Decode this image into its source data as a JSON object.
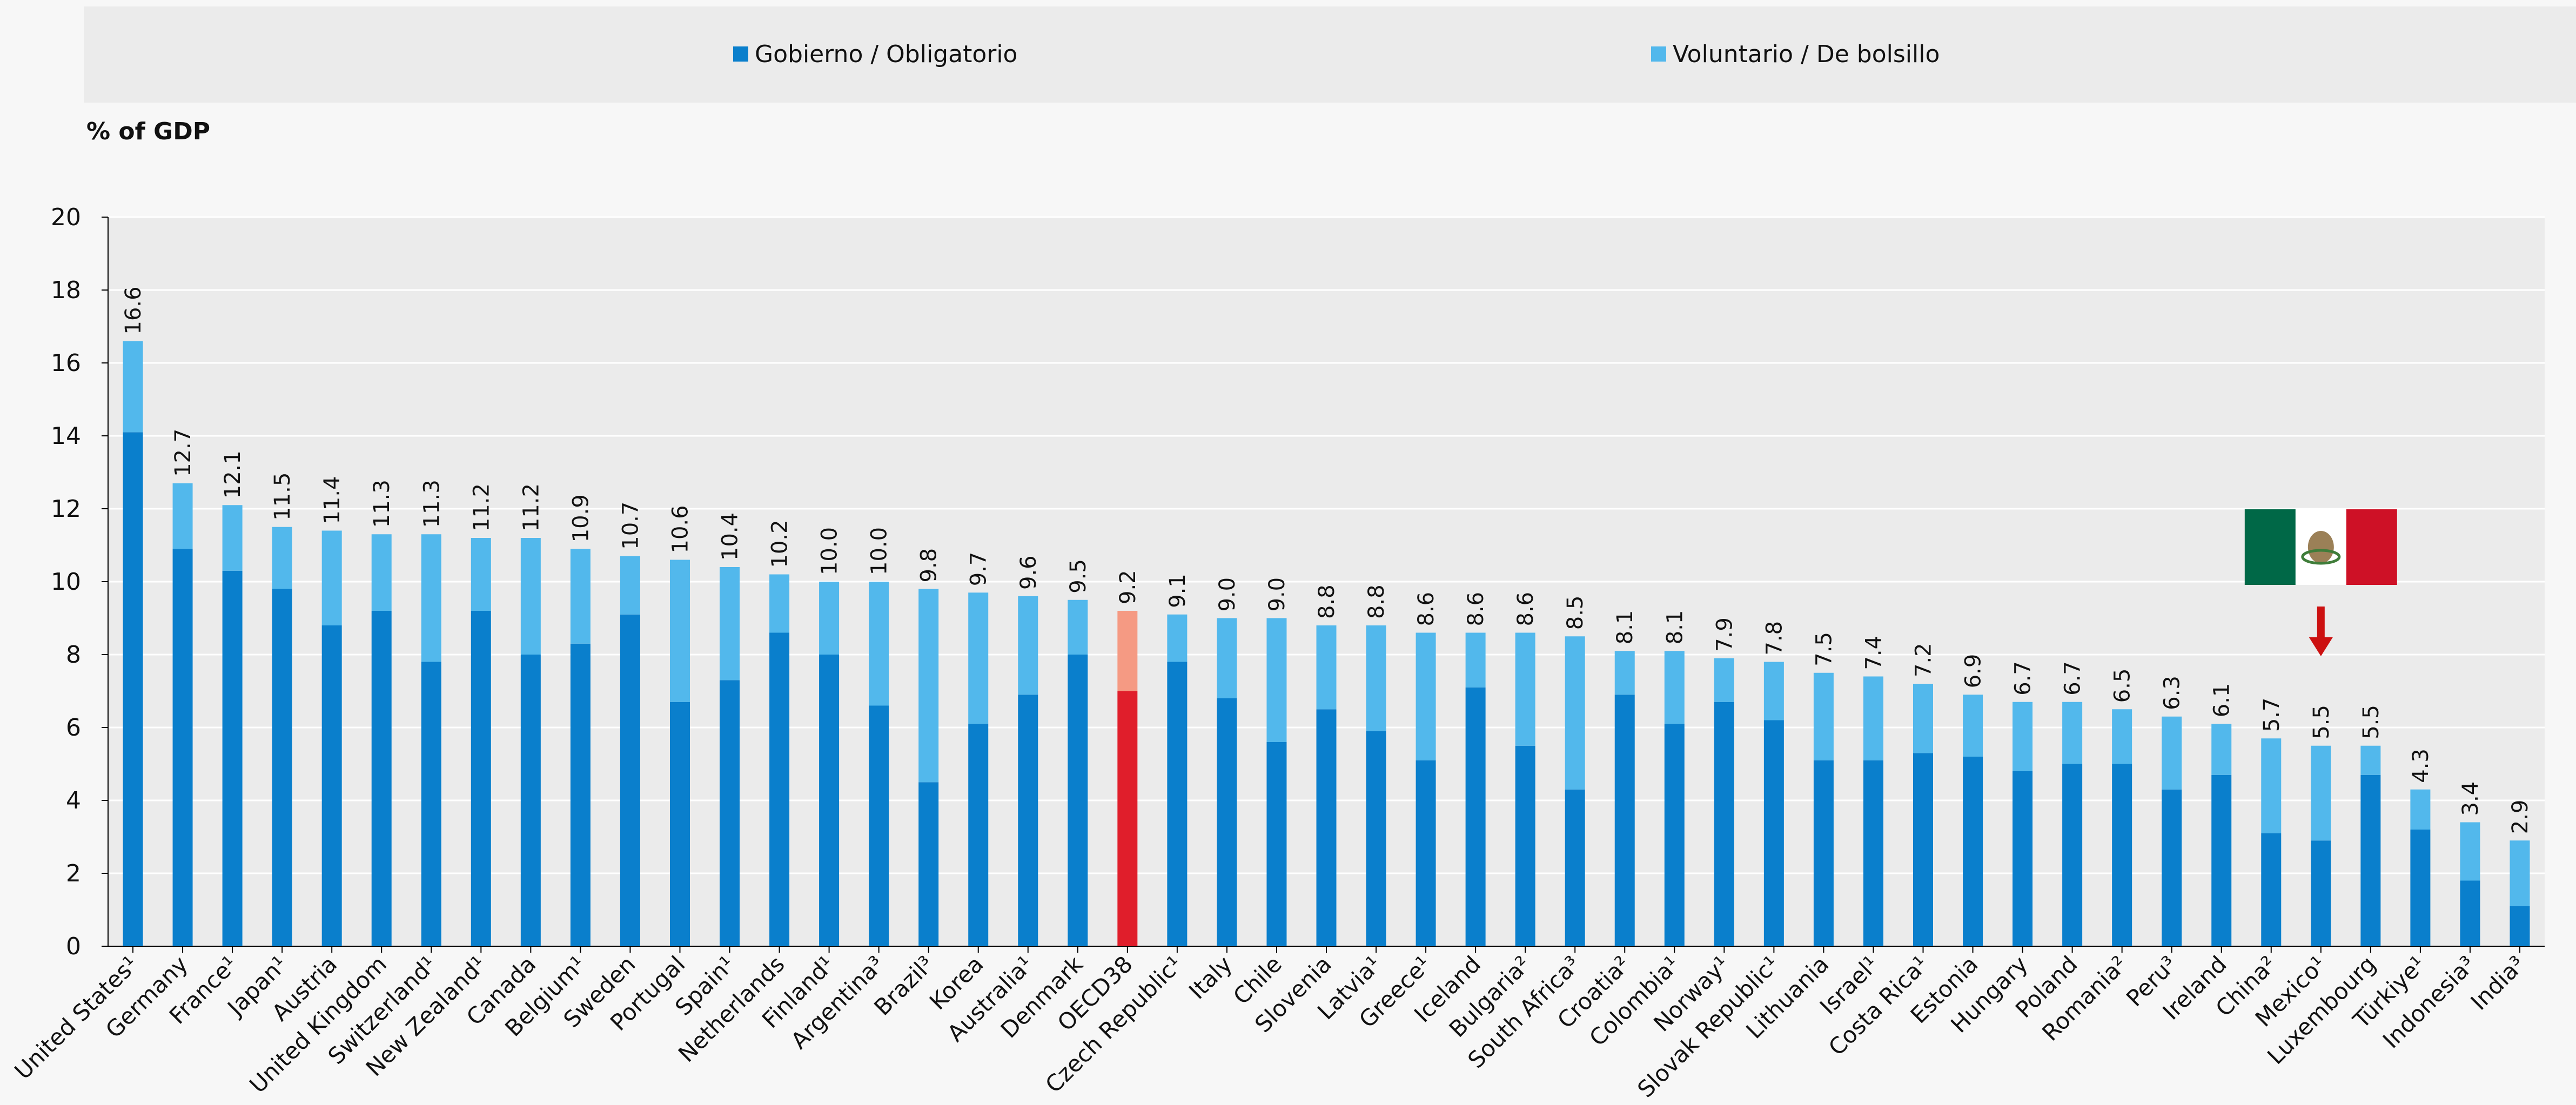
{
  "chart_data": {
    "type": "bar",
    "stacked": true,
    "ylabel": "% of GDP",
    "ylim": [
      0,
      20
    ],
    "yticks": [
      0,
      2,
      4,
      6,
      8,
      10,
      12,
      14,
      16,
      18,
      20
    ],
    "grid": true,
    "legend_position": "top",
    "categories": [
      "United States¹",
      "Germany",
      "France¹",
      "Japan¹",
      "Austria",
      "United Kingdom",
      "Switzerland¹",
      "New Zealand¹",
      "Canada",
      "Belgium¹",
      "Sweden",
      "Portugal",
      "Spain¹",
      "Netherlands",
      "Finland¹",
      "Argentina³",
      "Brazil³",
      "Korea",
      "Australia¹",
      "Denmark",
      "OECD38",
      "Czech Republic¹",
      "Italy",
      "Chile",
      "Slovenia",
      "Latvia¹",
      "Greece¹",
      "Iceland",
      "Bulgaria²",
      "South Africa³",
      "Croatia²",
      "Colombia¹",
      "Norway¹",
      "Slovak Republic¹",
      "Lithuania",
      "Israel¹",
      "Costa Rica¹",
      "Estonia",
      "Hungary",
      "Poland",
      "Romania²",
      "Peru³",
      "Ireland",
      "China²",
      "Mexico¹",
      "Luxembourg",
      "Türkiye¹",
      "Indonesia³",
      "India³"
    ],
    "totals": [
      16.6,
      12.7,
      12.1,
      11.5,
      11.4,
      11.3,
      11.3,
      11.2,
      11.2,
      10.9,
      10.7,
      10.6,
      10.4,
      10.2,
      10.0,
      10.0,
      9.8,
      9.7,
      9.6,
      9.5,
      9.2,
      9.1,
      9.0,
      9.0,
      8.8,
      8.8,
      8.6,
      8.6,
      8.6,
      8.5,
      8.1,
      8.1,
      7.9,
      7.8,
      7.5,
      7.4,
      7.2,
      6.9,
      6.7,
      6.7,
      6.5,
      6.3,
      6.1,
      5.7,
      5.5,
      5.5,
      4.3,
      3.4,
      2.9
    ],
    "total_labels": [
      "16.6",
      "12.7",
      "12.1",
      "11.5",
      "11.4",
      "11.3",
      "11.3",
      "11.2",
      "11.2",
      "10.9",
      "10.7",
      "10.6",
      "10.4",
      "10.2",
      "10.0",
      "10.0",
      "9.8",
      "9.7",
      "9.6",
      "9.5",
      "9.2",
      "9.1",
      "9.0",
      "9.0",
      "8.8",
      "8.8",
      "8.6",
      "8.6",
      "8.6",
      "8.5",
      "8.1",
      "8.1",
      "7.9",
      "7.8",
      "7.5",
      "7.4",
      "7.2",
      "6.9",
      "6.7",
      "6.7",
      "6.5",
      "6.3",
      "6.1",
      "5.7",
      "5.5",
      "5.5",
      "4.3",
      "3.4",
      "2.9"
    ],
    "series": [
      {
        "name": "Gobierno / Obligatorio",
        "color": "#0a7fcc",
        "values": [
          14.1,
          10.9,
          10.3,
          9.8,
          8.8,
          9.2,
          7.8,
          9.2,
          8.0,
          8.3,
          9.1,
          6.7,
          7.3,
          8.6,
          8.0,
          6.6,
          4.5,
          6.1,
          6.9,
          8.0,
          7.0,
          7.8,
          6.8,
          5.6,
          6.5,
          5.9,
          5.1,
          7.1,
          5.5,
          4.3,
          6.9,
          6.1,
          6.7,
          6.2,
          5.1,
          5.1,
          5.3,
          5.2,
          4.8,
          5.0,
          5.0,
          4.3,
          4.7,
          3.1,
          2.9,
          4.7,
          3.2,
          1.8,
          1.1
        ]
      },
      {
        "name": "Voluntario / De bolsillo",
        "color": "#52b8ec",
        "values": [
          2.5,
          1.8,
          1.8,
          1.7,
          2.6,
          2.1,
          3.5,
          2.0,
          3.2,
          2.6,
          1.6,
          3.9,
          3.1,
          1.6,
          2.0,
          3.4,
          5.3,
          3.6,
          2.7,
          1.5,
          2.2,
          1.3,
          2.2,
          3.4,
          2.3,
          2.9,
          3.5,
          1.5,
          3.1,
          4.2,
          1.2,
          2.0,
          1.2,
          1.6,
          2.4,
          2.3,
          1.9,
          1.7,
          1.9,
          1.7,
          1.5,
          2.0,
          1.4,
          2.6,
          2.6,
          0.8,
          1.1,
          1.6,
          1.8
        ]
      }
    ],
    "highlight": {
      "category": "OECD38",
      "colors": [
        "#e01e2b",
        "#f59a83"
      ]
    },
    "annotation": {
      "category": "Mexico¹",
      "icon": "mexico-flag-icon",
      "arrow": "down-arrow-icon",
      "arrow_color": "#cc1111",
      "flag_colors": [
        "#006847",
        "#ffffff",
        "#ce1126"
      ]
    },
    "colors": {
      "background": "#f7f7f7",
      "plot_background": "#ebebeb",
      "legend_background": "#ebebeb",
      "grid": "#ffffff",
      "axis": "#000000"
    }
  }
}
